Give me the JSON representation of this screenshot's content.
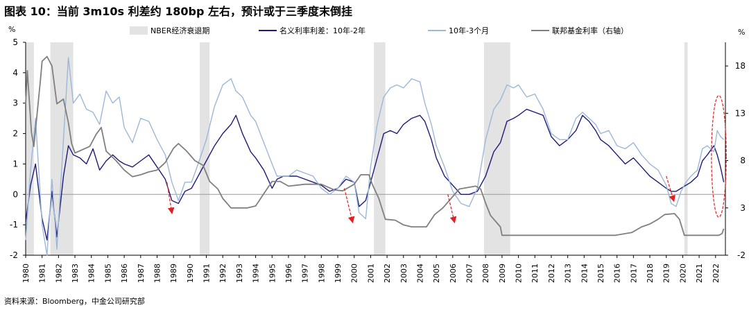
{
  "page": {
    "title": "图表 10：当前 3m10s 利差约 180bp 左右，预计或于三季度末倒挂",
    "source": "资料来源：Bloomberg，中金公司研究部"
  },
  "chart_data": {
    "type": "line",
    "left_axis": {
      "unit": "%",
      "min": -2,
      "max": 5,
      "ticks": [
        -2,
        -1,
        0,
        1,
        2,
        3,
        4,
        5
      ]
    },
    "right_axis": {
      "unit": "%",
      "min": -2,
      "max": 20.5,
      "ticks": [
        -2,
        3,
        8,
        13,
        18
      ],
      "ticks_labels": [
        "-2",
        "3",
        "8",
        "13",
        "18"
      ]
    },
    "x_axis": {
      "min": 1980,
      "max": 2022.6,
      "ticks": [
        1980,
        1981,
        1982,
        1983,
        1984,
        1985,
        1986,
        1987,
        1988,
        1989,
        1990,
        1991,
        1992,
        1993,
        1994,
        1995,
        1996,
        1997,
        1998,
        1999,
        2000,
        2001,
        2002,
        2003,
        2004,
        2005,
        2006,
        2007,
        2008,
        2009,
        2010,
        2011,
        2012,
        2013,
        2014,
        2015,
        2016,
        2017,
        2018,
        2019,
        2020,
        2021,
        2022
      ]
    },
    "recessions": [
      [
        1980.0,
        1980.5
      ],
      [
        1981.5,
        1982.9
      ],
      [
        1990.6,
        1991.2
      ],
      [
        2001.2,
        2001.9
      ],
      [
        2007.9,
        2009.5
      ],
      [
        2020.1,
        2020.3
      ]
    ],
    "legend": [
      {
        "label": "NBER经济衰退期",
        "color": "#e3e3e3",
        "kind": "box"
      },
      {
        "label": "名义利率利差：10年-2年",
        "color": "#1f1a7a",
        "kind": "line"
      },
      {
        "label": "10年-3个月",
        "color": "#9bb7d9",
        "kind": "line"
      },
      {
        "label": "联邦基金利率（右轴）",
        "color": "#7f7f7f",
        "kind": "line"
      }
    ],
    "series": [
      {
        "name": "名义利率利差：10年-2年",
        "axis": "left",
        "color": "#1f1a7a",
        "x": [
          1980.0,
          1980.3,
          1980.6,
          1981.0,
          1981.3,
          1981.6,
          1981.9,
          1982.3,
          1982.6,
          1982.9,
          1983.3,
          1983.7,
          1984.1,
          1984.5,
          1984.9,
          1985.3,
          1985.7,
          1986.0,
          1986.5,
          1987.0,
          1987.5,
          1988.0,
          1988.5,
          1988.9,
          1989.3,
          1989.7,
          1990.1,
          1990.5,
          1991.0,
          1991.5,
          1992.0,
          1992.5,
          1992.8,
          1993.2,
          1993.7,
          1994.0,
          1994.5,
          1995.0,
          1995.3,
          1995.7,
          1996.0,
          1996.5,
          1997.0,
          1997.5,
          1998.0,
          1998.5,
          1999.0,
          1999.5,
          2000.0,
          2000.3,
          2000.7,
          2001.0,
          2001.4,
          2001.8,
          2002.2,
          2002.6,
          2003.0,
          2003.5,
          2004.0,
          2004.3,
          2004.7,
          2005.0,
          2005.5,
          2006.0,
          2006.5,
          2007.0,
          2007.5,
          2008.0,
          2008.5,
          2008.9,
          2009.3,
          2009.7,
          2010.0,
          2010.5,
          2011.0,
          2011.5,
          2012.0,
          2012.5,
          2013.0,
          2013.5,
          2013.9,
          2014.3,
          2014.7,
          2015.0,
          2015.5,
          2016.0,
          2016.5,
          2017.0,
          2017.5,
          2018.0,
          2018.5,
          2019.0,
          2019.3,
          2019.6,
          2019.9,
          2020.2,
          2020.5,
          2020.9,
          2021.2,
          2021.5,
          2021.9,
          2022.1,
          2022.3,
          2022.5
        ],
        "y": [
          -0.9,
          0.3,
          1.0,
          -0.8,
          -1.5,
          0.1,
          -1.4,
          0.6,
          1.6,
          1.3,
          1.2,
          1.0,
          1.5,
          0.8,
          1.1,
          1.3,
          1.1,
          1.0,
          0.9,
          1.1,
          1.3,
          0.9,
          0.5,
          -0.2,
          -0.3,
          0.1,
          0.2,
          0.6,
          1.1,
          1.6,
          2.0,
          2.3,
          2.6,
          2.0,
          1.4,
          1.2,
          0.8,
          0.2,
          0.5,
          0.6,
          0.6,
          0.6,
          0.5,
          0.4,
          0.3,
          0.1,
          0.2,
          0.5,
          0.4,
          -0.4,
          -0.2,
          0.4,
          1.2,
          2.0,
          2.1,
          2.0,
          2.3,
          2.5,
          2.6,
          2.4,
          1.8,
          1.2,
          0.6,
          0.3,
          0.0,
          0.0,
          0.1,
          0.6,
          1.4,
          1.7,
          2.4,
          2.5,
          2.6,
          2.8,
          2.7,
          2.6,
          1.9,
          1.6,
          1.8,
          2.1,
          2.6,
          2.4,
          2.1,
          1.8,
          1.6,
          1.3,
          1.0,
          1.2,
          0.9,
          0.6,
          0.4,
          0.2,
          0.1,
          0.1,
          0.2,
          0.3,
          0.4,
          0.6,
          1.1,
          1.3,
          1.6,
          1.3,
          0.9,
          0.4
        ]
      },
      {
        "name": "10年-3个月",
        "axis": "left",
        "color": "#9bb7d9",
        "x": [
          1980.0,
          1980.3,
          1980.6,
          1981.0,
          1981.3,
          1981.6,
          1981.9,
          1982.3,
          1982.6,
          1982.9,
          1983.3,
          1983.7,
          1984.1,
          1984.5,
          1984.9,
          1985.3,
          1985.7,
          1986.0,
          1986.5,
          1987.0,
          1987.5,
          1988.0,
          1988.5,
          1988.9,
          1989.3,
          1989.7,
          1990.1,
          1990.5,
          1991.0,
          1991.5,
          1992.0,
          1992.5,
          1992.8,
          1993.2,
          1993.7,
          1994.0,
          1994.5,
          1995.0,
          1995.3,
          1995.7,
          1996.0,
          1996.5,
          1997.0,
          1997.5,
          1998.0,
          1998.5,
          1999.0,
          1999.5,
          2000.0,
          2000.3,
          2000.7,
          2001.0,
          2001.4,
          2001.8,
          2002.2,
          2002.6,
          2003.0,
          2003.5,
          2004.0,
          2004.3,
          2004.7,
          2005.0,
          2005.5,
          2006.0,
          2006.5,
          2007.0,
          2007.5,
          2008.0,
          2008.5,
          2008.9,
          2009.3,
          2009.7,
          2010.0,
          2010.5,
          2011.0,
          2011.5,
          2012.0,
          2012.5,
          2013.0,
          2013.5,
          2013.9,
          2014.3,
          2014.7,
          2015.0,
          2015.5,
          2016.0,
          2016.5,
          2017.0,
          2017.5,
          2018.0,
          2018.5,
          2019.0,
          2019.3,
          2019.6,
          2019.9,
          2020.2,
          2020.5,
          2020.9,
          2021.2,
          2021.5,
          2021.9,
          2022.1,
          2022.3,
          2022.5
        ],
        "y": [
          -1.5,
          0.8,
          2.5,
          -1.0,
          -2.0,
          0.5,
          -1.8,
          1.8,
          4.5,
          3.0,
          3.3,
          2.8,
          2.7,
          2.3,
          3.4,
          3.0,
          3.2,
          2.2,
          1.7,
          2.5,
          2.4,
          1.8,
          1.3,
          0.4,
          -0.2,
          0.4,
          0.4,
          1.0,
          1.8,
          2.9,
          3.6,
          3.8,
          3.4,
          3.2,
          2.6,
          2.4,
          1.7,
          1.0,
          0.6,
          0.6,
          0.6,
          0.8,
          0.7,
          0.6,
          0.2,
          0.0,
          0.2,
          0.6,
          0.4,
          -0.6,
          -0.8,
          0.9,
          2.3,
          3.2,
          3.5,
          3.6,
          3.5,
          3.8,
          3.7,
          3.0,
          2.3,
          1.6,
          0.9,
          0.1,
          -0.3,
          -0.4,
          0.2,
          1.8,
          2.8,
          3.1,
          3.6,
          3.5,
          3.6,
          3.2,
          3.3,
          2.8,
          2.0,
          1.8,
          1.8,
          2.5,
          2.7,
          2.5,
          2.3,
          2.0,
          2.1,
          1.6,
          1.5,
          1.7,
          1.3,
          1.0,
          0.8,
          0.3,
          -0.3,
          -0.4,
          0.1,
          0.4,
          0.6,
          0.8,
          1.5,
          1.6,
          1.4,
          2.1,
          1.9,
          1.8
        ]
      },
      {
        "name": "联邦基金利率（右轴）",
        "axis": "right",
        "color": "#7f7f7f",
        "x": [
          1980.0,
          1980.1,
          1980.35,
          1980.5,
          1980.9,
          1981.0,
          1981.3,
          1981.6,
          1981.9,
          1982.3,
          1982.6,
          1982.8,
          1983.0,
          1983.9,
          1984.3,
          1984.6,
          1984.9,
          1985.5,
          1986.0,
          1986.5,
          1987.0,
          1987.5,
          1988.0,
          1988.5,
          1989.0,
          1989.3,
          1989.8,
          1990.3,
          1990.8,
          1991.2,
          1991.7,
          1992.0,
          1992.5,
          1993.5,
          1994.0,
          1994.5,
          1995.0,
          1995.5,
          1996.0,
          1997.0,
          1998.0,
          1998.8,
          1999.3,
          2000.0,
          2000.4,
          2000.9,
          2001.1,
          2001.5,
          2001.9,
          2002.5,
          2003.0,
          2003.5,
          2004.4,
          2004.9,
          2005.4,
          2005.9,
          2006.4,
          2007.4,
          2007.7,
          2008.0,
          2008.3,
          2008.9,
          2009.0,
          2015.9,
          2016.9,
          2017.5,
          2018.0,
          2018.5,
          2018.9,
          2019.5,
          2019.8,
          2020.1,
          2020.3,
          2022.2,
          2022.4,
          2022.5
        ],
        "y": [
          14.0,
          17.5,
          11.0,
          9.5,
          16.5,
          18.5,
          19.0,
          18.0,
          14.0,
          14.5,
          12.0,
          9.8,
          8.8,
          9.5,
          10.8,
          11.5,
          9.0,
          8.0,
          7.0,
          6.3,
          6.5,
          6.8,
          7.0,
          7.8,
          9.3,
          9.8,
          9.0,
          8.0,
          7.5,
          5.8,
          5.0,
          4.0,
          3.0,
          3.0,
          3.2,
          4.5,
          5.8,
          5.8,
          5.3,
          5.5,
          5.5,
          4.9,
          4.8,
          5.5,
          6.5,
          6.5,
          5.5,
          4.0,
          1.8,
          1.7,
          1.2,
          1.0,
          1.0,
          2.3,
          3.0,
          4.0,
          5.0,
          5.3,
          5.0,
          3.5,
          2.2,
          1.0,
          0.1,
          0.1,
          0.4,
          1.0,
          1.3,
          1.8,
          2.3,
          2.4,
          1.8,
          0.1,
          0.1,
          0.1,
          0.3,
          0.8
        ]
      }
    ],
    "annotations": {
      "arrows": [
        {
          "from": [
            1988.6,
            0.4
          ],
          "to": [
            1988.9,
            -0.6
          ]
        },
        {
          "from": [
            1999.4,
            0.2
          ],
          "to": [
            1999.9,
            -0.9
          ]
        },
        {
          "from": [
            2005.7,
            0.0
          ],
          "to": [
            2006.1,
            -0.9
          ]
        },
        {
          "from": [
            2019.0,
            0.6
          ],
          "to": [
            2019.45,
            -0.2
          ]
        }
      ],
      "ellipse": {
        "cx": 2022.2,
        "cy": 1.25,
        "rx": 0.45,
        "ry": 2.0
      }
    }
  }
}
